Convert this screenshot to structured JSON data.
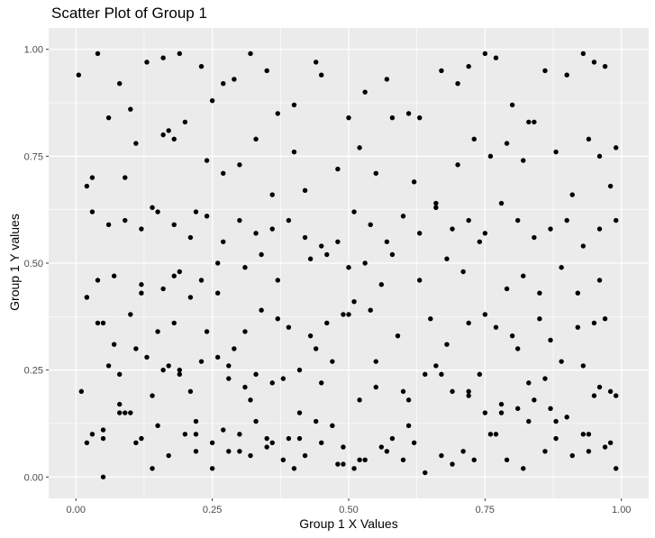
{
  "chart_data": {
    "type": "scatter",
    "title": "Scatter Plot of Group 1",
    "xlabel": "Group 1 X Values",
    "ylabel": "Group 1 Y values",
    "xlim": [
      -0.05,
      1.05
    ],
    "ylim": [
      -0.05,
      1.05
    ],
    "xticks": [
      0,
      0.25,
      0.5,
      0.75,
      1
    ],
    "xtick_labels": [
      "0.00",
      "0.25",
      "0.50",
      "0.75",
      "1.00"
    ],
    "yticks": [
      0,
      0.25,
      0.5,
      0.75,
      1
    ],
    "ytick_labels": [
      "0.00",
      "0.25",
      "0.50",
      "0.75",
      "1.00"
    ],
    "grid": true,
    "panel_background": "#ebebeb",
    "grid_color": "#ffffff",
    "point_color": "#000000",
    "x": [
      0.005,
      0.02,
      0.04,
      0.08,
      0.1,
      0.13,
      0.16,
      0.17,
      0.19,
      0.2,
      0.23,
      0.25,
      0.27,
      0.29,
      0.32,
      0.35,
      0.37,
      0.4,
      0.44,
      0.45,
      0.5,
      0.53,
      0.57,
      0.61,
      0.63,
      0.67,
      0.7,
      0.72,
      0.75,
      0.77,
      0.8,
      0.83,
      0.86,
      0.9,
      0.93,
      0.95,
      0.97,
      0.99,
      0.03,
      0.06,
      0.09,
      0.11,
      0.14,
      0.16,
      0.18,
      0.22,
      0.24,
      0.27,
      0.3,
      0.33,
      0.36,
      0.4,
      0.42,
      0.48,
      0.52,
      0.55,
      0.58,
      0.62,
      0.66,
      0.7,
      0.73,
      0.76,
      0.79,
      0.82,
      0.84,
      0.88,
      0.91,
      0.94,
      0.96,
      0.98,
      0.02,
      0.05,
      0.07,
      0.1,
      0.12,
      0.15,
      0.18,
      0.21,
      0.24,
      0.26,
      0.29,
      0.31,
      0.34,
      0.37,
      0.39,
      0.43,
      0.46,
      0.49,
      0.51,
      0.54,
      0.56,
      0.59,
      0.65,
      0.68,
      0.72,
      0.75,
      0.77,
      0.8,
      0.85,
      0.87,
      0.92,
      0.95,
      0.97,
      0.02,
      0.04,
      0.06,
      0.08,
      0.11,
      0.13,
      0.17,
      0.19,
      0.21,
      0.23,
      0.26,
      0.28,
      0.31,
      0.33,
      0.36,
      0.38,
      0.41,
      0.44,
      0.47,
      0.5,
      0.52,
      0.55,
      0.6,
      0.64,
      0.66,
      0.69,
      0.74,
      0.78,
      0.81,
      0.83,
      0.86,
      0.89,
      0.93,
      0.96,
      0.99,
      0.01,
      0.03,
      0.05,
      0.08,
      0.1,
      0.12,
      0.15,
      0.17,
      0.2,
      0.22,
      0.25,
      0.28,
      0.3,
      0.32,
      0.35,
      0.38,
      0.4,
      0.42,
      0.45,
      0.48,
      0.51,
      0.53,
      0.57,
      0.6,
      0.62,
      0.67,
      0.71,
      0.73,
      0.76,
      0.79,
      0.82,
      0.86,
      0.88,
      0.91,
      0.94,
      0.97,
      0.99,
      0.02,
      0.05,
      0.08,
      0.11,
      0.14,
      0.16,
      0.19,
      0.22,
      0.25,
      0.27,
      0.3,
      0.33,
      0.35,
      0.39,
      0.41,
      0.44,
      0.47,
      0.49,
      0.52,
      0.56,
      0.58,
      0.61,
      0.64,
      0.69,
      0.72,
      0.75,
      0.78,
      0.81,
      0.84,
      0.87,
      0.9,
      0.93,
      0.95,
      0.98,
      0.03,
      0.06,
      0.09,
      0.12,
      0.15,
      0.18,
      0.21,
      0.24,
      0.27,
      0.3,
      0.33,
      0.36,
      0.39,
      0.42,
      0.45,
      0.48,
      0.51,
      0.54,
      0.57,
      0.6,
      0.63,
      0.66,
      0.69,
      0.72,
      0.75,
      0.78,
      0.81,
      0.84,
      0.87,
      0.9,
      0.93,
      0.96,
      0.99,
      0.04,
      0.07,
      0.12,
      0.16,
      0.19,
      0.23,
      0.26,
      0.31,
      0.34,
      0.37,
      0.43,
      0.46,
      0.5,
      0.53,
      0.58,
      0.63,
      0.68,
      0.71,
      0.74,
      0.79,
      0.82,
      0.85,
      0.89,
      0.92,
      0.96,
      0.05,
      0.09,
      0.14,
      0.18,
      0.22,
      0.28,
      0.32,
      0.36,
      0.41,
      0.45,
      0.49,
      0.55,
      0.61,
      0.67,
      0.72,
      0.77,
      0.83,
      0.88,
      0.94,
      0.98
    ],
    "y": [
      0.94,
      0.68,
      0.99,
      0.92,
      0.86,
      0.97,
      0.98,
      0.81,
      0.99,
      0.83,
      0.96,
      0.88,
      0.92,
      0.93,
      0.99,
      0.95,
      0.85,
      0.87,
      0.97,
      0.94,
      0.84,
      0.9,
      0.93,
      0.85,
      0.84,
      0.95,
      0.92,
      0.96,
      0.99,
      0.98,
      0.87,
      0.83,
      0.95,
      0.94,
      0.99,
      0.97,
      0.96,
      0.77,
      0.7,
      0.84,
      0.7,
      0.78,
      0.63,
      0.8,
      0.79,
      0.62,
      0.74,
      0.71,
      0.73,
      0.79,
      0.66,
      0.76,
      0.67,
      0.72,
      0.77,
      0.71,
      0.84,
      0.69,
      0.64,
      0.73,
      0.79,
      0.75,
      0.78,
      0.74,
      0.83,
      0.76,
      0.66,
      0.79,
      0.75,
      0.68,
      0.42,
      0.36,
      0.31,
      0.38,
      0.45,
      0.34,
      0.47,
      0.42,
      0.34,
      0.43,
      0.3,
      0.34,
      0.39,
      0.37,
      0.35,
      0.33,
      0.36,
      0.38,
      0.41,
      0.39,
      0.45,
      0.33,
      0.37,
      0.31,
      0.36,
      0.38,
      0.35,
      0.33,
      0.37,
      0.32,
      0.35,
      0.36,
      0.37,
      0.42,
      0.36,
      0.26,
      0.24,
      0.3,
      0.28,
      0.26,
      0.25,
      0.2,
      0.27,
      0.28,
      0.26,
      0.21,
      0.24,
      0.22,
      0.23,
      0.25,
      0.3,
      0.27,
      0.38,
      0.18,
      0.21,
      0.2,
      0.24,
      0.26,
      0.2,
      0.24,
      0.15,
      0.3,
      0.22,
      0.23,
      0.27,
      0.26,
      0.21,
      0.19,
      0.2,
      0.1,
      0.11,
      0.17,
      0.15,
      0.09,
      0.12,
      0.05,
      0.1,
      0.13,
      0.08,
      0.06,
      0.1,
      0.05,
      0.07,
      0.04,
      0.02,
      0.05,
      0.08,
      0.03,
      0.02,
      0.04,
      0.06,
      0.04,
      0.08,
      0.05,
      0.06,
      0.04,
      0.1,
      0.04,
      0.02,
      0.06,
      0.13,
      0.05,
      0.1,
      0.07,
      0.02,
      0.08,
      0.0,
      0.15,
      0.08,
      0.19,
      0.25,
      0.24,
      0.06,
      0.02,
      0.11,
      0.06,
      0.13,
      0.09,
      0.09,
      0.09,
      0.13,
      0.12,
      0.07,
      0.04,
      0.07,
      0.09,
      0.12,
      0.01,
      0.03,
      0.2,
      0.15,
      0.17,
      0.16,
      0.18,
      0.16,
      0.14,
      0.1,
      0.19,
      0.2,
      0.62,
      0.59,
      0.6,
      0.58,
      0.62,
      0.59,
      0.56,
      0.61,
      0.55,
      0.6,
      0.57,
      0.58,
      0.6,
      0.56,
      0.54,
      0.55,
      0.62,
      0.59,
      0.55,
      0.61,
      0.57,
      0.63,
      0.58,
      0.6,
      0.57,
      0.64,
      0.6,
      0.56,
      0.58,
      0.6,
      0.54,
      0.58,
      0.6,
      0.46,
      0.47,
      0.43,
      0.44,
      0.48,
      0.46,
      0.5,
      0.49,
      0.52,
      0.46,
      0.51,
      0.52,
      0.49,
      0.5,
      0.52,
      0.46,
      0.51,
      0.48,
      0.55,
      0.44,
      0.47,
      0.43,
      0.49,
      0.43,
      0.46,
      0.09,
      0.15,
      0.02,
      0.36,
      0.1,
      0.23,
      0.18,
      0.08,
      0.15,
      0.22,
      0.03,
      0.27,
      0.18,
      0.24,
      0.19,
      0.1,
      0.13,
      0.09,
      0.06,
      0.08
    ]
  }
}
